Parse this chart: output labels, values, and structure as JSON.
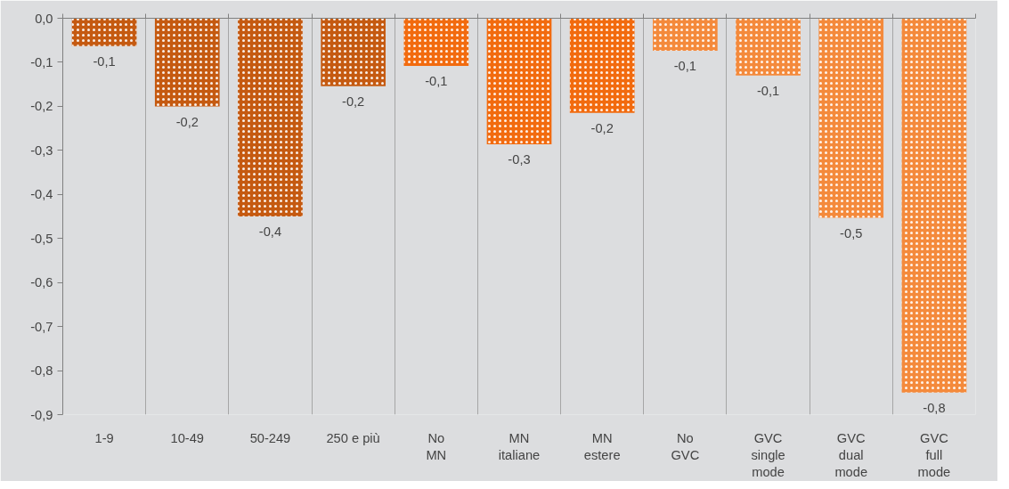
{
  "chart_data": {
    "type": "bar",
    "categories": [
      "1-9",
      "10-49",
      "50-249",
      "250 e più",
      "No\nMN",
      "MN\nitaliane",
      "MN\nestere",
      "No\nGVC",
      "GVC\nsingle\nmode",
      "GVC\ndual\nmode",
      "GVC\nfull\nmode"
    ],
    "values": [
      -0.063,
      -0.2,
      -0.45,
      -0.154,
      -0.108,
      -0.286,
      -0.215,
      -0.074,
      -0.13,
      -0.453,
      -0.85
    ],
    "colors": [
      "#c55a11",
      "#c55a11",
      "#c55a11",
      "#c55a11",
      "#f26b0f",
      "#f26b0f",
      "#f26b0f",
      "#f48a3c",
      "#f48a3c",
      "#f48a3c",
      "#f48a3c"
    ],
    "value_labels": [
      "-0,1",
      "-0,2",
      "-0,4",
      "-0,2",
      "-0,1",
      "-0,3",
      "-0,2",
      "-0,1",
      "-0,1",
      "-0,5",
      "-0,8"
    ],
    "ylim": [
      -0.9,
      0
    ],
    "yticks": [
      {
        "value": 0,
        "label": "0,0"
      },
      {
        "value": -0.1,
        "label": "-0,1"
      },
      {
        "value": -0.2,
        "label": "-0,2"
      },
      {
        "value": -0.3,
        "label": "-0,3"
      },
      {
        "value": -0.4,
        "label": "-0,4"
      },
      {
        "value": -0.5,
        "label": "-0,5"
      },
      {
        "value": -0.6,
        "label": "-0,6"
      },
      {
        "value": -0.7,
        "label": "-0,7"
      },
      {
        "value": -0.8,
        "label": "-0,8"
      },
      {
        "value": -0.9,
        "label": "-0,9"
      }
    ],
    "grid": "x"
  }
}
